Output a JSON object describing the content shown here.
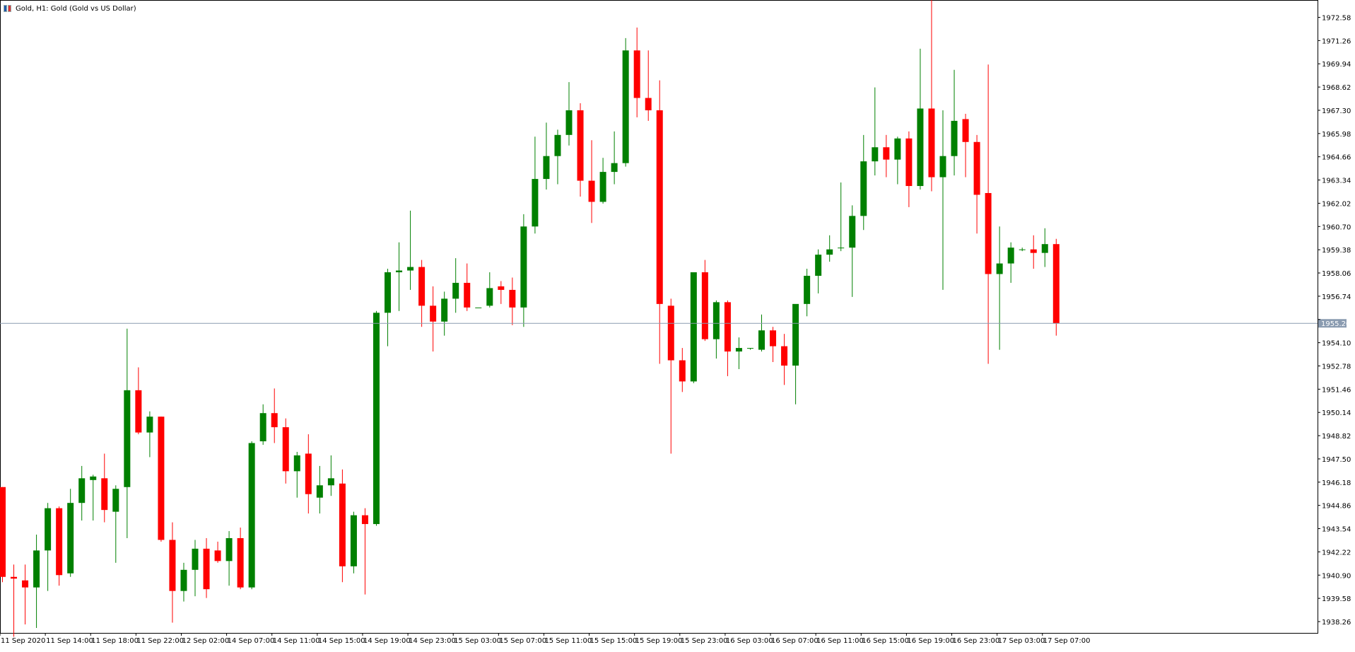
{
  "window": {
    "title": "Gold, H1:  Gold (Gold vs US Dollar)",
    "icon": "chart-window-icon"
  },
  "colors": {
    "bull": "#008000",
    "bear": "#ff0000",
    "bid_line": "#8a9bb0",
    "bid_box": "#8a9bb0",
    "axis": "#000000",
    "background": "#ffffff"
  },
  "chart_data": {
    "type": "candlestick",
    "symbol": "Gold",
    "timeframe": "H1",
    "ylim": [
      1936.5,
      1974.0
    ],
    "y_ticks": [
      "1972.58",
      "1971.26",
      "1969.94",
      "1968.62",
      "1967.30",
      "1965.98",
      "1964.66",
      "1963.34",
      "1962.02",
      "1960.70",
      "1959.38",
      "1958.06",
      "1956.74",
      "1955.42",
      "1954.10",
      "1952.78",
      "1951.46",
      "1950.14",
      "1948.82",
      "1947.50",
      "1946.18",
      "1944.86",
      "1943.54",
      "1942.22",
      "1940.90",
      "1939.58",
      "1938.26"
    ],
    "x_ticks": [
      {
        "label": "11 Sep 2020",
        "index": 0
      },
      {
        "label": "11 Sep 14:00",
        "index": 4
      },
      {
        "label": "11 Sep 18:00",
        "index": 8
      },
      {
        "label": "11 Sep 22:00",
        "index": 12
      },
      {
        "label": "12 Sep 02:00",
        "index": 16
      },
      {
        "label": "14 Sep 07:00",
        "index": 20
      },
      {
        "label": "14 Sep 11:00",
        "index": 24
      },
      {
        "label": "14 Sep 15:00",
        "index": 28
      },
      {
        "label": "14 Sep 19:00",
        "index": 32
      },
      {
        "label": "14 Sep 23:00",
        "index": 36
      },
      {
        "label": "15 Sep 03:00",
        "index": 40
      },
      {
        "label": "15 Sep 07:00",
        "index": 44
      },
      {
        "label": "15 Sep 11:00",
        "index": 48
      },
      {
        "label": "15 Sep 15:00",
        "index": 52
      },
      {
        "label": "15 Sep 19:00",
        "index": 56
      },
      {
        "label": "15 Sep 23:00",
        "index": 60
      },
      {
        "label": "16 Sep 03:00",
        "index": 64
      },
      {
        "label": "16 Sep 07:00",
        "index": 68
      },
      {
        "label": "16 Sep 11:00",
        "index": 72
      },
      {
        "label": "16 Sep 15:00",
        "index": 76
      },
      {
        "label": "16 Sep 19:00",
        "index": 80
      },
      {
        "label": "16 Sep 23:00",
        "index": 84
      },
      {
        "label": "17 Sep 03:00",
        "index": 88
      },
      {
        "label": "17 Sep 07:00",
        "index": 92
      }
    ],
    "bid": 1955.2,
    "bid_label": "1955.20",
    "candles": [
      {
        "o": 1945.9,
        "h": 1945.9,
        "l": 1940.5,
        "c": 1940.8
      },
      {
        "o": 1940.8,
        "h": 1941.5,
        "l": 1937.4,
        "c": 1940.7
      },
      {
        "o": 1940.6,
        "h": 1941.5,
        "l": 1938.1,
        "c": 1940.2
      },
      {
        "o": 1940.2,
        "h": 1943.2,
        "l": 1937.9,
        "c": 1942.3
      },
      {
        "o": 1942.3,
        "h": 1945.0,
        "l": 1940.0,
        "c": 1944.7
      },
      {
        "o": 1944.7,
        "h": 1944.8,
        "l": 1940.3,
        "c": 1940.9
      },
      {
        "o": 1941.0,
        "h": 1945.8,
        "l": 1940.8,
        "c": 1945.0
      },
      {
        "o": 1945.0,
        "h": 1947.1,
        "l": 1944.0,
        "c": 1946.4
      },
      {
        "o": 1946.3,
        "h": 1946.6,
        "l": 1944.0,
        "c": 1946.5
      },
      {
        "o": 1946.4,
        "h": 1947.8,
        "l": 1943.9,
        "c": 1944.6
      },
      {
        "o": 1944.5,
        "h": 1946.0,
        "l": 1941.6,
        "c": 1945.8
      },
      {
        "o": 1945.9,
        "h": 1954.9,
        "l": 1943.0,
        "c": 1951.4
      },
      {
        "o": 1951.4,
        "h": 1952.7,
        "l": 1948.9,
        "c": 1949.0
      },
      {
        "o": 1949.0,
        "h": 1950.2,
        "l": 1947.6,
        "c": 1949.9
      },
      {
        "o": 1949.9,
        "h": 1949.9,
        "l": 1942.8,
        "c": 1942.9
      },
      {
        "o": 1942.9,
        "h": 1943.9,
        "l": 1938.2,
        "c": 1940.0
      },
      {
        "o": 1940.0,
        "h": 1941.6,
        "l": 1939.4,
        "c": 1941.2
      },
      {
        "o": 1941.2,
        "h": 1942.9,
        "l": 1939.7,
        "c": 1942.4
      },
      {
        "o": 1942.4,
        "h": 1943.0,
        "l": 1939.6,
        "c": 1940.1
      },
      {
        "o": 1942.3,
        "h": 1942.8,
        "l": 1941.6,
        "c": 1941.7
      },
      {
        "o": 1941.7,
        "h": 1943.4,
        "l": 1940.3,
        "c": 1943.0
      },
      {
        "o": 1943.0,
        "h": 1943.6,
        "l": 1940.1,
        "c": 1940.2
      },
      {
        "o": 1940.2,
        "h": 1948.5,
        "l": 1940.1,
        "c": 1948.4
      },
      {
        "o": 1948.5,
        "h": 1950.6,
        "l": 1948.3,
        "c": 1950.1
      },
      {
        "o": 1950.1,
        "h": 1951.5,
        "l": 1948.4,
        "c": 1949.3
      },
      {
        "o": 1949.3,
        "h": 1949.8,
        "l": 1946.1,
        "c": 1946.8
      },
      {
        "o": 1946.8,
        "h": 1947.9,
        "l": 1945.3,
        "c": 1947.7
      },
      {
        "o": 1947.8,
        "h": 1948.9,
        "l": 1944.4,
        "c": 1945.5
      },
      {
        "o": 1945.3,
        "h": 1947.1,
        "l": 1944.4,
        "c": 1946.0
      },
      {
        "o": 1946.0,
        "h": 1947.7,
        "l": 1945.4,
        "c": 1946.4
      },
      {
        "o": 1946.1,
        "h": 1946.9,
        "l": 1940.5,
        "c": 1941.4
      },
      {
        "o": 1941.4,
        "h": 1944.5,
        "l": 1941.0,
        "c": 1944.3
      },
      {
        "o": 1944.3,
        "h": 1944.7,
        "l": 1939.8,
        "c": 1943.8
      },
      {
        "o": 1943.8,
        "h": 1955.9,
        "l": 1943.7,
        "c": 1955.8
      },
      {
        "o": 1955.8,
        "h": 1958.3,
        "l": 1953.9,
        "c": 1958.1
      },
      {
        "o": 1958.1,
        "h": 1959.8,
        "l": 1955.9,
        "c": 1958.2
      },
      {
        "o": 1958.2,
        "h": 1961.6,
        "l": 1957.1,
        "c": 1958.4
      },
      {
        "o": 1958.4,
        "h": 1958.8,
        "l": 1955.0,
        "c": 1956.2
      },
      {
        "o": 1956.2,
        "h": 1957.3,
        "l": 1953.6,
        "c": 1955.3
      },
      {
        "o": 1955.3,
        "h": 1957.0,
        "l": 1954.5,
        "c": 1956.6
      },
      {
        "o": 1956.6,
        "h": 1958.9,
        "l": 1955.8,
        "c": 1957.5
      },
      {
        "o": 1957.5,
        "h": 1958.6,
        "l": 1955.9,
        "c": 1956.1
      },
      {
        "o": 1956.1,
        "h": 1956.1,
        "l": 1956.1,
        "c": 1956.1
      },
      {
        "o": 1956.2,
        "h": 1958.1,
        "l": 1956.1,
        "c": 1957.2
      },
      {
        "o": 1957.3,
        "h": 1957.6,
        "l": 1956.3,
        "c": 1957.1
      },
      {
        "o": 1957.1,
        "h": 1957.8,
        "l": 1955.1,
        "c": 1956.1
      },
      {
        "o": 1956.1,
        "h": 1961.4,
        "l": 1955.0,
        "c": 1960.7
      },
      {
        "o": 1960.7,
        "h": 1965.8,
        "l": 1960.3,
        "c": 1963.4
      },
      {
        "o": 1963.4,
        "h": 1966.6,
        "l": 1962.8,
        "c": 1964.7
      },
      {
        "o": 1964.7,
        "h": 1966.2,
        "l": 1963.1,
        "c": 1965.9
      },
      {
        "o": 1965.9,
        "h": 1968.9,
        "l": 1965.3,
        "c": 1967.3
      },
      {
        "o": 1967.3,
        "h": 1967.7,
        "l": 1962.4,
        "c": 1963.3
      },
      {
        "o": 1963.3,
        "h": 1965.6,
        "l": 1960.9,
        "c": 1962.1
      },
      {
        "o": 1962.1,
        "h": 1964.6,
        "l": 1962.0,
        "c": 1963.8
      },
      {
        "o": 1963.8,
        "h": 1966.1,
        "l": 1963.1,
        "c": 1964.3
      },
      {
        "o": 1964.3,
        "h": 1971.4,
        "l": 1964.1,
        "c": 1970.7
      },
      {
        "o": 1970.7,
        "h": 1972.0,
        "l": 1966.9,
        "c": 1968.0
      },
      {
        "o": 1968.0,
        "h": 1970.7,
        "l": 1966.7,
        "c": 1967.3
      },
      {
        "o": 1967.3,
        "h": 1969.0,
        "l": 1952.9,
        "c": 1956.3
      },
      {
        "o": 1956.2,
        "h": 1956.6,
        "l": 1947.8,
        "c": 1953.1
      },
      {
        "o": 1953.1,
        "h": 1953.8,
        "l": 1951.3,
        "c": 1951.9
      },
      {
        "o": 1951.9,
        "h": 1958.0,
        "l": 1951.8,
        "c": 1958.1
      },
      {
        "o": 1958.1,
        "h": 1958.8,
        "l": 1954.2,
        "c": 1954.3
      },
      {
        "o": 1954.3,
        "h": 1956.5,
        "l": 1953.2,
        "c": 1956.4
      },
      {
        "o": 1956.4,
        "h": 1956.5,
        "l": 1952.2,
        "c": 1953.6
      },
      {
        "o": 1953.6,
        "h": 1954.4,
        "l": 1952.6,
        "c": 1953.8
      },
      {
        "o": 1953.8,
        "h": 1953.8,
        "l": 1953.7,
        "c": 1953.8
      },
      {
        "o": 1953.7,
        "h": 1955.7,
        "l": 1953.6,
        "c": 1954.8
      },
      {
        "o": 1954.8,
        "h": 1955.0,
        "l": 1953.0,
        "c": 1953.9
      },
      {
        "o": 1953.9,
        "h": 1954.6,
        "l": 1951.7,
        "c": 1952.8
      },
      {
        "o": 1952.8,
        "h": 1956.2,
        "l": 1950.6,
        "c": 1956.3
      },
      {
        "o": 1956.3,
        "h": 1958.3,
        "l": 1955.6,
        "c": 1957.9
      },
      {
        "o": 1957.9,
        "h": 1959.4,
        "l": 1956.9,
        "c": 1959.1
      },
      {
        "o": 1959.1,
        "h": 1960.2,
        "l": 1958.7,
        "c": 1959.4
      },
      {
        "o": 1959.5,
        "h": 1963.2,
        "l": 1959.3,
        "c": 1959.5
      },
      {
        "o": 1959.5,
        "h": 1961.9,
        "l": 1956.7,
        "c": 1961.3
      },
      {
        "o": 1961.3,
        "h": 1965.9,
        "l": 1960.5,
        "c": 1964.4
      },
      {
        "o": 1964.4,
        "h": 1968.6,
        "l": 1963.6,
        "c": 1965.2
      },
      {
        "o": 1965.2,
        "h": 1965.9,
        "l": 1963.5,
        "c": 1964.5
      },
      {
        "o": 1964.5,
        "h": 1965.8,
        "l": 1963.1,
        "c": 1965.7
      },
      {
        "o": 1965.7,
        "h": 1966.1,
        "l": 1961.8,
        "c": 1963.0
      },
      {
        "o": 1963.0,
        "h": 1970.8,
        "l": 1962.8,
        "c": 1967.4
      },
      {
        "o": 1967.4,
        "h": 1973.6,
        "l": 1962.7,
        "c": 1963.5
      },
      {
        "o": 1963.5,
        "h": 1967.3,
        "l": 1957.1,
        "c": 1964.7
      },
      {
        "o": 1964.7,
        "h": 1969.6,
        "l": 1963.6,
        "c": 1966.7
      },
      {
        "o": 1966.8,
        "h": 1967.1,
        "l": 1963.5,
        "c": 1965.5
      },
      {
        "o": 1965.5,
        "h": 1965.9,
        "l": 1960.3,
        "c": 1962.5
      },
      {
        "o": 1962.6,
        "h": 1969.9,
        "l": 1952.9,
        "c": 1958.0
      },
      {
        "o": 1958.0,
        "h": 1960.7,
        "l": 1953.7,
        "c": 1958.6
      },
      {
        "o": 1958.6,
        "h": 1959.8,
        "l": 1957.5,
        "c": 1959.5
      },
      {
        "o": 1959.4,
        "h": 1959.5,
        "l": 1959.3,
        "c": 1959.4
      },
      {
        "o": 1959.4,
        "h": 1960.2,
        "l": 1958.3,
        "c": 1959.2
      },
      {
        "o": 1959.2,
        "h": 1960.6,
        "l": 1958.4,
        "c": 1959.7
      },
      {
        "o": 1959.7,
        "h": 1960.0,
        "l": 1954.5,
        "c": 1955.2
      }
    ]
  }
}
